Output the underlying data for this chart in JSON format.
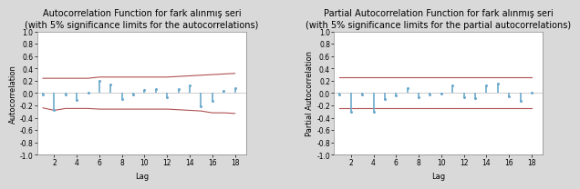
{
  "acf_title": "Autocorrelation Function for fark alınmış seri",
  "acf_subtitle": "(with 5% significance limits for the autocorrelations)",
  "pacf_title": "Partial Autocorrelation Function for fark alınmış seri",
  "pacf_subtitle": "(with 5% significance limits for the partial autocorrelations)",
  "acf_ylabel": "Autocorrelation",
  "pacf_ylabel": "Partial Autocorrelation",
  "xlabel": "Lag",
  "lags": [
    1,
    2,
    3,
    4,
    5,
    6,
    7,
    8,
    9,
    10,
    11,
    12,
    13,
    14,
    15,
    16,
    17,
    18
  ],
  "acf_values": [
    -0.02,
    -0.27,
    -0.02,
    -0.11,
    0.01,
    0.2,
    0.14,
    -0.1,
    -0.02,
    0.05,
    0.06,
    -0.06,
    0.06,
    0.12,
    -0.22,
    -0.12,
    0.04,
    0.08
  ],
  "pacf_values": [
    -0.02,
    -0.31,
    -0.03,
    -0.3,
    -0.09,
    -0.04,
    0.08,
    -0.07,
    -0.02,
    -0.01,
    0.13,
    -0.06,
    -0.08,
    0.13,
    0.15,
    -0.05,
    -0.13,
    0.01
  ],
  "acf_ci_upper": [
    0.24,
    0.24,
    0.24,
    0.24,
    0.24,
    0.26,
    0.26,
    0.26,
    0.26,
    0.26,
    0.26,
    0.26,
    0.27,
    0.28,
    0.29,
    0.3,
    0.31,
    0.32
  ],
  "acf_ci_lower": [
    -0.24,
    -0.28,
    -0.25,
    -0.25,
    -0.25,
    -0.26,
    -0.26,
    -0.26,
    -0.26,
    -0.26,
    -0.26,
    -0.26,
    -0.27,
    -0.28,
    -0.29,
    -0.32,
    -0.32,
    -0.33
  ],
  "pacf_ci_upper": 0.25,
  "pacf_ci_lower": -0.25,
  "ylim": [
    -1.0,
    1.0
  ],
  "yticks": [
    -1.0,
    -0.8,
    -0.6,
    -0.4,
    -0.2,
    0.0,
    0.2,
    0.4,
    0.6,
    0.8,
    1.0
  ],
  "bar_color": "#6ca9cc",
  "ci_color": "#b05050",
  "bg_color": "#d9d9d9",
  "plot_bg_color": "#ffffff",
  "title_fontsize": 7.0,
  "subtitle_fontsize": 6.0,
  "label_fontsize": 6.0,
  "tick_fontsize": 5.5
}
